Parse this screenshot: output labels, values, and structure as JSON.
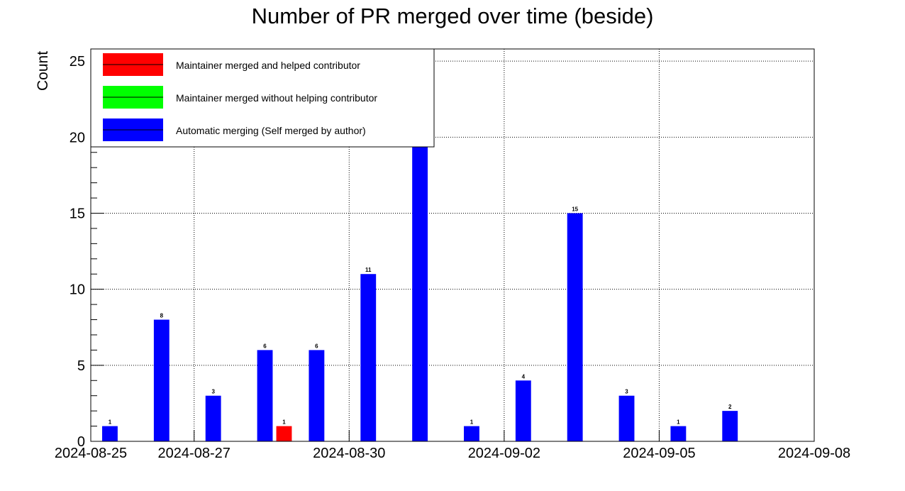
{
  "chart_data": {
    "type": "bar",
    "title": "Number of PR merged over time (beside)",
    "ylabel": "Count",
    "xlabel": "",
    "x_tick_labels": [
      "2024-08-25",
      "2024-08-27",
      "2024-08-30",
      "2024-09-02",
      "2024-09-05",
      "2024-09-08"
    ],
    "x_tick_dates": [
      "2024-08-25",
      "2024-08-27",
      "2024-08-30",
      "2024-09-02",
      "2024-09-05",
      "2024-09-08"
    ],
    "y_ticks": [
      0,
      5,
      10,
      15,
      20,
      25
    ],
    "ylim": [
      0,
      25.8
    ],
    "xlim": [
      "2024-08-25",
      "2024-09-08"
    ],
    "grid": true,
    "legend_position": "top-left",
    "categories": [
      "2024-08-25",
      "2024-08-26",
      "2024-08-27",
      "2024-08-28",
      "2024-08-29",
      "2024-08-30",
      "2024-08-31",
      "2024-09-01",
      "2024-09-02",
      "2024-09-03",
      "2024-09-04",
      "2024-09-05",
      "2024-09-06",
      "2024-09-07"
    ],
    "series": [
      {
        "name": "Maintainer merged and helped contributor",
        "color": "#ff0000",
        "values": [
          0,
          0,
          0,
          1,
          0,
          0,
          0,
          0,
          0,
          0,
          0,
          0,
          0,
          0
        ]
      },
      {
        "name": "Maintainer merged without helping contributor",
        "color": "#00ff00",
        "values": [
          0,
          0,
          0,
          0,
          0,
          0,
          0,
          0,
          0,
          0,
          0,
          0,
          0,
          0
        ]
      },
      {
        "name": "Automatic merging (Self merged by author)",
        "color": "#0000ff",
        "values": [
          1,
          8,
          3,
          6,
          6,
          11,
          20,
          1,
          4,
          15,
          3,
          1,
          2,
          0
        ]
      }
    ]
  }
}
